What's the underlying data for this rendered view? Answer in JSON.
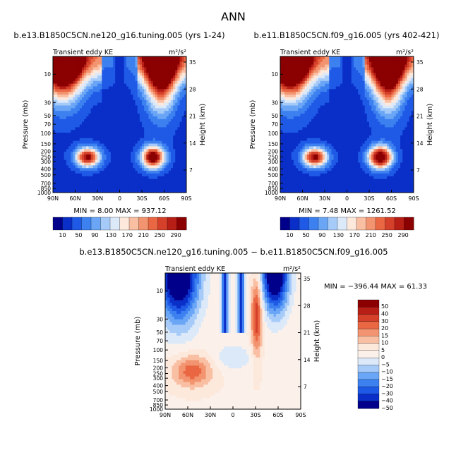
{
  "page": {
    "title": "ANN"
  },
  "chart_data": [
    {
      "type": "heatmap",
      "title": "b.e13.B1850C5CN.ne120_g16.tuning.005 (yrs 1-24)",
      "left_label": "Transient eddy KE",
      "units": "m²/s²",
      "ylabel": "Pressure (mb)",
      "ylabel_right": "Height (km)",
      "x_ticks": [
        "90N",
        "60N",
        "30N",
        "0",
        "30S",
        "60S",
        "90S"
      ],
      "y_ticks": [
        "10",
        "30",
        "50",
        "70",
        "100",
        "150",
        "200",
        "250",
        "300",
        "400",
        "500",
        "700",
        "850",
        "1000"
      ],
      "y_right_ticks": [
        "35",
        "28",
        "21",
        "14",
        "7"
      ],
      "stats_text": "MIN =     8.00   MAX =  937.12",
      "colorbar_levels": [
        "10",
        "50",
        "90",
        "130",
        "170",
        "210",
        "250",
        "290"
      ]
    },
    {
      "type": "heatmap",
      "title": "b.e11.B1850C5CN.f09_g16.005 (yrs 402-421)",
      "left_label": "Transient eddy KE",
      "units": "m²/s²",
      "ylabel": "Pressure (mb)",
      "ylabel_right": "Height (km)",
      "x_ticks": [
        "90N",
        "60N",
        "30N",
        "0",
        "30S",
        "60S",
        "90S"
      ],
      "y_ticks": [
        "10",
        "30",
        "50",
        "70",
        "100",
        "150",
        "200",
        "250",
        "300",
        "400",
        "500",
        "700",
        "850",
        "1000"
      ],
      "y_right_ticks": [
        "35",
        "28",
        "21",
        "14",
        "7"
      ],
      "stats_text": "MIN =     7.48   MAX =  1261.52",
      "colorbar_levels": [
        "10",
        "50",
        "90",
        "130",
        "170",
        "210",
        "250",
        "290"
      ]
    },
    {
      "type": "heatmap",
      "title": "b.e13.B1850C5CN.ne120_g16.tuning.005 − b.e11.B1850C5CN.f09_g16.005",
      "left_label": "Transient eddy KE",
      "units": "m²/s²",
      "ylabel": "Pressure (mb)",
      "ylabel_right": "Height (km)",
      "x_ticks": [
        "90N",
        "60N",
        "30N",
        "0",
        "30S",
        "60S",
        "90S"
      ],
      "y_ticks": [
        "10",
        "30",
        "50",
        "70",
        "100",
        "150",
        "200",
        "250",
        "300",
        "400",
        "500",
        "700",
        "850",
        "1000"
      ],
      "y_right_ticks": [
        "35",
        "28",
        "21",
        "14",
        "7"
      ],
      "stats_text": "MIN = −396.44   MAX =   61.33",
      "colorbar_levels": [
        "50",
        "40",
        "30",
        "20",
        "15",
        "10",
        "5",
        "0",
        "−5",
        "−10",
        "−15",
        "−20",
        "−30",
        "−40",
        "−50"
      ]
    }
  ],
  "colors": {
    "seq": [
      "#00008b",
      "#0a2fc8",
      "#1f5ae6",
      "#3d80f0",
      "#6aa6f5",
      "#a7cbf8",
      "#dce9f9",
      "#fde8dc",
      "#f9bfa3",
      "#f39470",
      "#ea6743",
      "#d4402a",
      "#b71e16",
      "#8b0000"
    ],
    "div": [
      "#8b0000",
      "#b71e16",
      "#d4402a",
      "#ea6743",
      "#f39470",
      "#f9bfa3",
      "#fde8dc",
      "#fbf1ea",
      "#dce9f9",
      "#a7cbf8",
      "#6aa6f5",
      "#3d80f0",
      "#1f5ae6",
      "#0a2fc8",
      "#00008b"
    ]
  }
}
